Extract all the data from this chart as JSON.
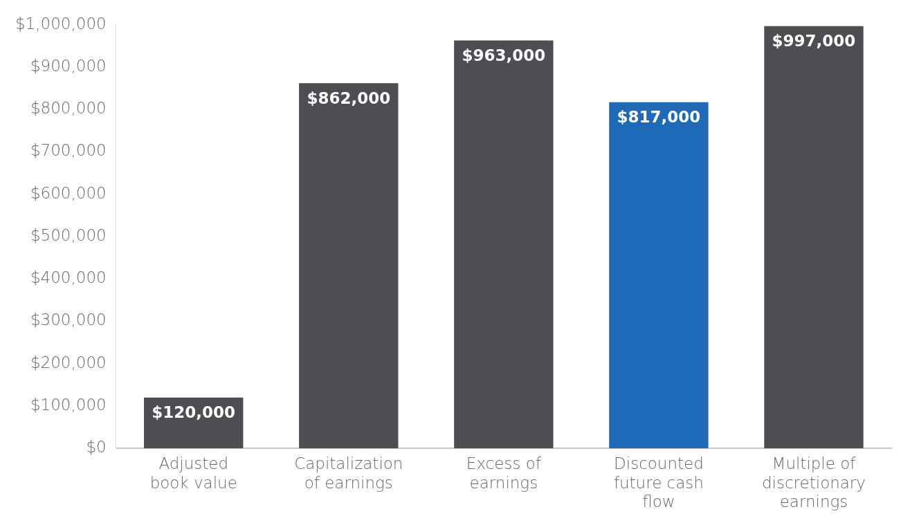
{
  "chart_data": {
    "type": "bar",
    "categories": [
      "Adjusted book value",
      "Capitalization of earnings",
      "Excess of earnings",
      "Discounted future cash flow",
      "Multiple of discretionary earnings"
    ],
    "values": [
      120000,
      862000,
      963000,
      817000,
      997000
    ],
    "colors": [
      "#4d4e52",
      "#4d4e52",
      "#4d4e52",
      "#1f6ab8",
      "#4d4e52"
    ],
    "value_labels": [
      "$120,000",
      "$862,000",
      "$963,000",
      "$817,000",
      "$997,000"
    ],
    "ylim": [
      0,
      1000000
    ],
    "yticks": [
      {
        "value": 0,
        "label": "$0"
      },
      {
        "value": 100000,
        "label": "$100,000"
      },
      {
        "value": 200000,
        "label": "$200,000"
      },
      {
        "value": 300000,
        "label": "$300,000"
      },
      {
        "value": 400000,
        "label": "$400,000"
      },
      {
        "value": 500000,
        "label": "$500,000"
      },
      {
        "value": 600000,
        "label": "$600,000"
      },
      {
        "value": 700000,
        "label": "$700,000"
      },
      {
        "value": 800000,
        "label": "$800,000"
      },
      {
        "value": 900000,
        "label": "$900,000"
      },
      {
        "value": 1000000,
        "label": "$1,000,000"
      }
    ],
    "grid": false,
    "legend": false
  }
}
